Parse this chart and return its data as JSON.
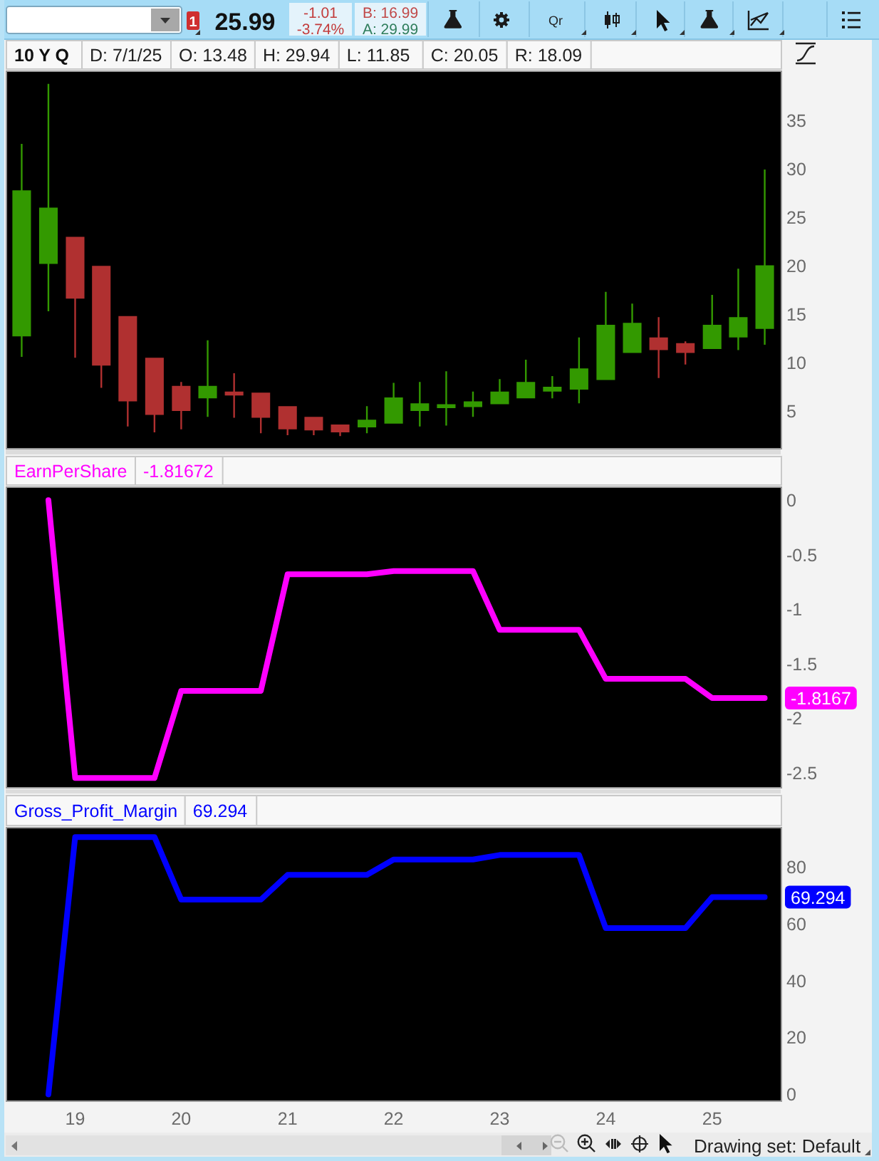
{
  "chart_data": [
    {
      "type": "candlestick",
      "title": "10 Y Q",
      "x": [
        "2018-07",
        "2018-10",
        "2019-01",
        "2019-04",
        "2019-07",
        "2019-10",
        "2020-01",
        "2020-04",
        "2020-07",
        "2020-10",
        "2021-01",
        "2021-04",
        "2021-07",
        "2021-10",
        "2022-01",
        "2022-04",
        "2022-07",
        "2022-10",
        "2023-01",
        "2023-04",
        "2023-07",
        "2023-10",
        "2024-01",
        "2024-04",
        "2024-07",
        "2024-10",
        "2025-01",
        "2025-04",
        "2025-07"
      ],
      "ohlc": [
        [
          12.7,
          32.6,
          10.6,
          27.8
        ],
        [
          20.2,
          38.8,
          15.3,
          26.0
        ],
        [
          23.0,
          23.0,
          10.5,
          16.6
        ],
        [
          20.0,
          20.0,
          7.4,
          9.7
        ],
        [
          14.8,
          14.8,
          3.4,
          6.0
        ],
        [
          10.5,
          10.5,
          2.8,
          4.6
        ],
        [
          7.6,
          8.0,
          3.1,
          5.0
        ],
        [
          6.3,
          12.3,
          4.4,
          7.6
        ],
        [
          7.0,
          8.9,
          4.3,
          6.6
        ],
        [
          6.9,
          6.9,
          2.7,
          4.3
        ],
        [
          5.5,
          5.5,
          2.5,
          3.1
        ],
        [
          4.4,
          4.4,
          2.5,
          3.0
        ],
        [
          3.6,
          3.6,
          2.4,
          2.8
        ],
        [
          3.3,
          5.5,
          2.7,
          4.1
        ],
        [
          3.7,
          7.9,
          3.7,
          6.4
        ],
        [
          5.0,
          8.0,
          3.4,
          5.8
        ],
        [
          5.3,
          9.1,
          3.5,
          5.7
        ],
        [
          5.4,
          7.0,
          4.4,
          6.0
        ],
        [
          5.7,
          8.3,
          5.7,
          7.0
        ],
        [
          6.3,
          10.3,
          6.3,
          8.0
        ],
        [
          7.0,
          8.6,
          6.3,
          7.5
        ],
        [
          7.2,
          12.6,
          5.8,
          9.4
        ],
        [
          8.2,
          17.3,
          8.2,
          13.9
        ],
        [
          11.0,
          16.1,
          11.0,
          14.1
        ],
        [
          12.6,
          14.7,
          8.4,
          11.3
        ],
        [
          12.0,
          12.2,
          9.8,
          11.0
        ],
        [
          11.4,
          17.0,
          11.4,
          13.9
        ],
        [
          12.6,
          19.7,
          11.3,
          14.7
        ],
        [
          13.48,
          29.94,
          11.85,
          20.05
        ]
      ],
      "colors": [
        "#339900",
        "#339900",
        "#b03030",
        "#b03030",
        "#b03030",
        "#b03030",
        "#b03030",
        "#339900",
        "#b03030",
        "#b03030",
        "#b03030",
        "#b03030",
        "#b03030",
        "#339900",
        "#339900",
        "#339900",
        "#339900",
        "#339900",
        "#339900",
        "#339900",
        "#339900",
        "#339900",
        "#339900",
        "#339900",
        "#b03030",
        "#b03030",
        "#339900",
        "#339900",
        "#339900"
      ],
      "xlim": [
        "2018-05-07",
        "2025-08-25"
      ],
      "ylim": [
        1.1,
        40.1
      ],
      "yticks": [
        5,
        10,
        15,
        20,
        25,
        30,
        35
      ],
      "tick_labels": "y",
      "annotations": [
        "1",
        "25.99",
        "-1.01",
        "-3.74%",
        "B: 16.99",
        "A: 29.99",
        "Qr",
        "D: 7/1/25",
        "O: 13.48",
        "H: 29.94",
        "L: 11.85",
        "C: 20.05",
        "R: 18.09",
        "Drawing set: Default"
      ]
    },
    {
      "type": "line",
      "series": [
        {
          "name": "EarnPerShare",
          "color": "#ff00ff",
          "x": [
            "2018-10",
            "2019-01",
            "2019-04",
            "2019-07",
            "2019-10",
            "2020-01",
            "2020-04",
            "2020-07",
            "2020-10",
            "2021-01",
            "2021-04",
            "2021-07",
            "2021-10",
            "2022-01",
            "2022-04",
            "2022-07",
            "2022-10",
            "2023-01",
            "2023-04",
            "2023-07",
            "2023-10",
            "2024-01",
            "2024-04",
            "2024-07",
            "2024-10",
            "2025-01",
            "2025-04",
            "2025-07"
          ],
          "values": [
            0,
            -2.55,
            -2.55,
            -2.55,
            -2.55,
            -1.75,
            -1.75,
            -1.75,
            -1.75,
            -0.68,
            -0.68,
            -0.68,
            -0.68,
            -0.65,
            -0.65,
            -0.65,
            -0.65,
            -1.19,
            -1.19,
            -1.19,
            -1.19,
            -1.64,
            -1.64,
            -1.64,
            -1.64,
            -1.8167,
            -1.8167,
            -1.8167
          ],
          "value_labels": [
            null,
            null,
            null,
            null,
            null,
            null,
            null,
            null,
            null,
            null,
            null,
            null,
            null,
            null,
            null,
            null,
            null,
            null,
            null,
            null,
            null,
            null,
            null,
            null,
            null,
            null,
            null,
            "-1.8167"
          ]
        }
      ],
      "xlim": [
        "2018-05-07",
        "2025-08-25"
      ],
      "ylim": [
        -2.64,
        0.12
      ],
      "yticks": [
        0,
        -0.5,
        -1,
        -1.5,
        -2,
        -2.5
      ],
      "tick_labels": "y",
      "legend": "top left",
      "annotations": [
        "-1.81672"
      ]
    },
    {
      "type": "line",
      "series": [
        {
          "name": "Gross_Profit_Margin",
          "color": "#0000ff",
          "x": [
            "2018-10",
            "2019-01",
            "2019-04",
            "2019-07",
            "2019-10",
            "2020-01",
            "2020-04",
            "2020-07",
            "2020-10",
            "2021-01",
            "2021-04",
            "2021-07",
            "2021-10",
            "2022-01",
            "2022-04",
            "2022-07",
            "2022-10",
            "2023-01",
            "2023-04",
            "2023-07",
            "2023-10",
            "2024-01",
            "2024-04",
            "2024-07",
            "2024-10",
            "2025-01",
            "2025-04",
            "2025-07"
          ],
          "values": [
            0,
            90.4,
            90.4,
            90.4,
            90.4,
            68.4,
            68.4,
            68.4,
            68.4,
            77.1,
            77.1,
            77.1,
            77.1,
            82.5,
            82.5,
            82.5,
            82.5,
            84.1,
            84.1,
            84.1,
            84.1,
            58.4,
            58.4,
            58.4,
            58.4,
            69.294,
            69.294,
            69.294
          ],
          "value_labels": [
            null,
            null,
            null,
            null,
            null,
            null,
            null,
            null,
            null,
            null,
            null,
            null,
            null,
            null,
            null,
            null,
            null,
            null,
            null,
            null,
            null,
            null,
            null,
            null,
            null,
            null,
            null,
            "69.294"
          ]
        }
      ],
      "xlim": [
        "2018-05-07",
        "2025-08-25"
      ],
      "xticks": [
        {
          "value": "2019-01",
          "label": "19"
        },
        {
          "value": "2020-01",
          "label": "20"
        },
        {
          "value": "2021-01",
          "label": "21"
        },
        {
          "value": "2022-01",
          "label": "22"
        },
        {
          "value": "2023-01",
          "label": "23"
        },
        {
          "value": "2024-01",
          "label": "24"
        },
        {
          "value": "2025-01",
          "label": "25"
        }
      ],
      "ylim": [
        -2.4,
        93.7
      ],
      "yticks": [
        0,
        20,
        40,
        60,
        80
      ],
      "legend": "top left",
      "annotations": [
        "69.294"
      ]
    }
  ]
}
